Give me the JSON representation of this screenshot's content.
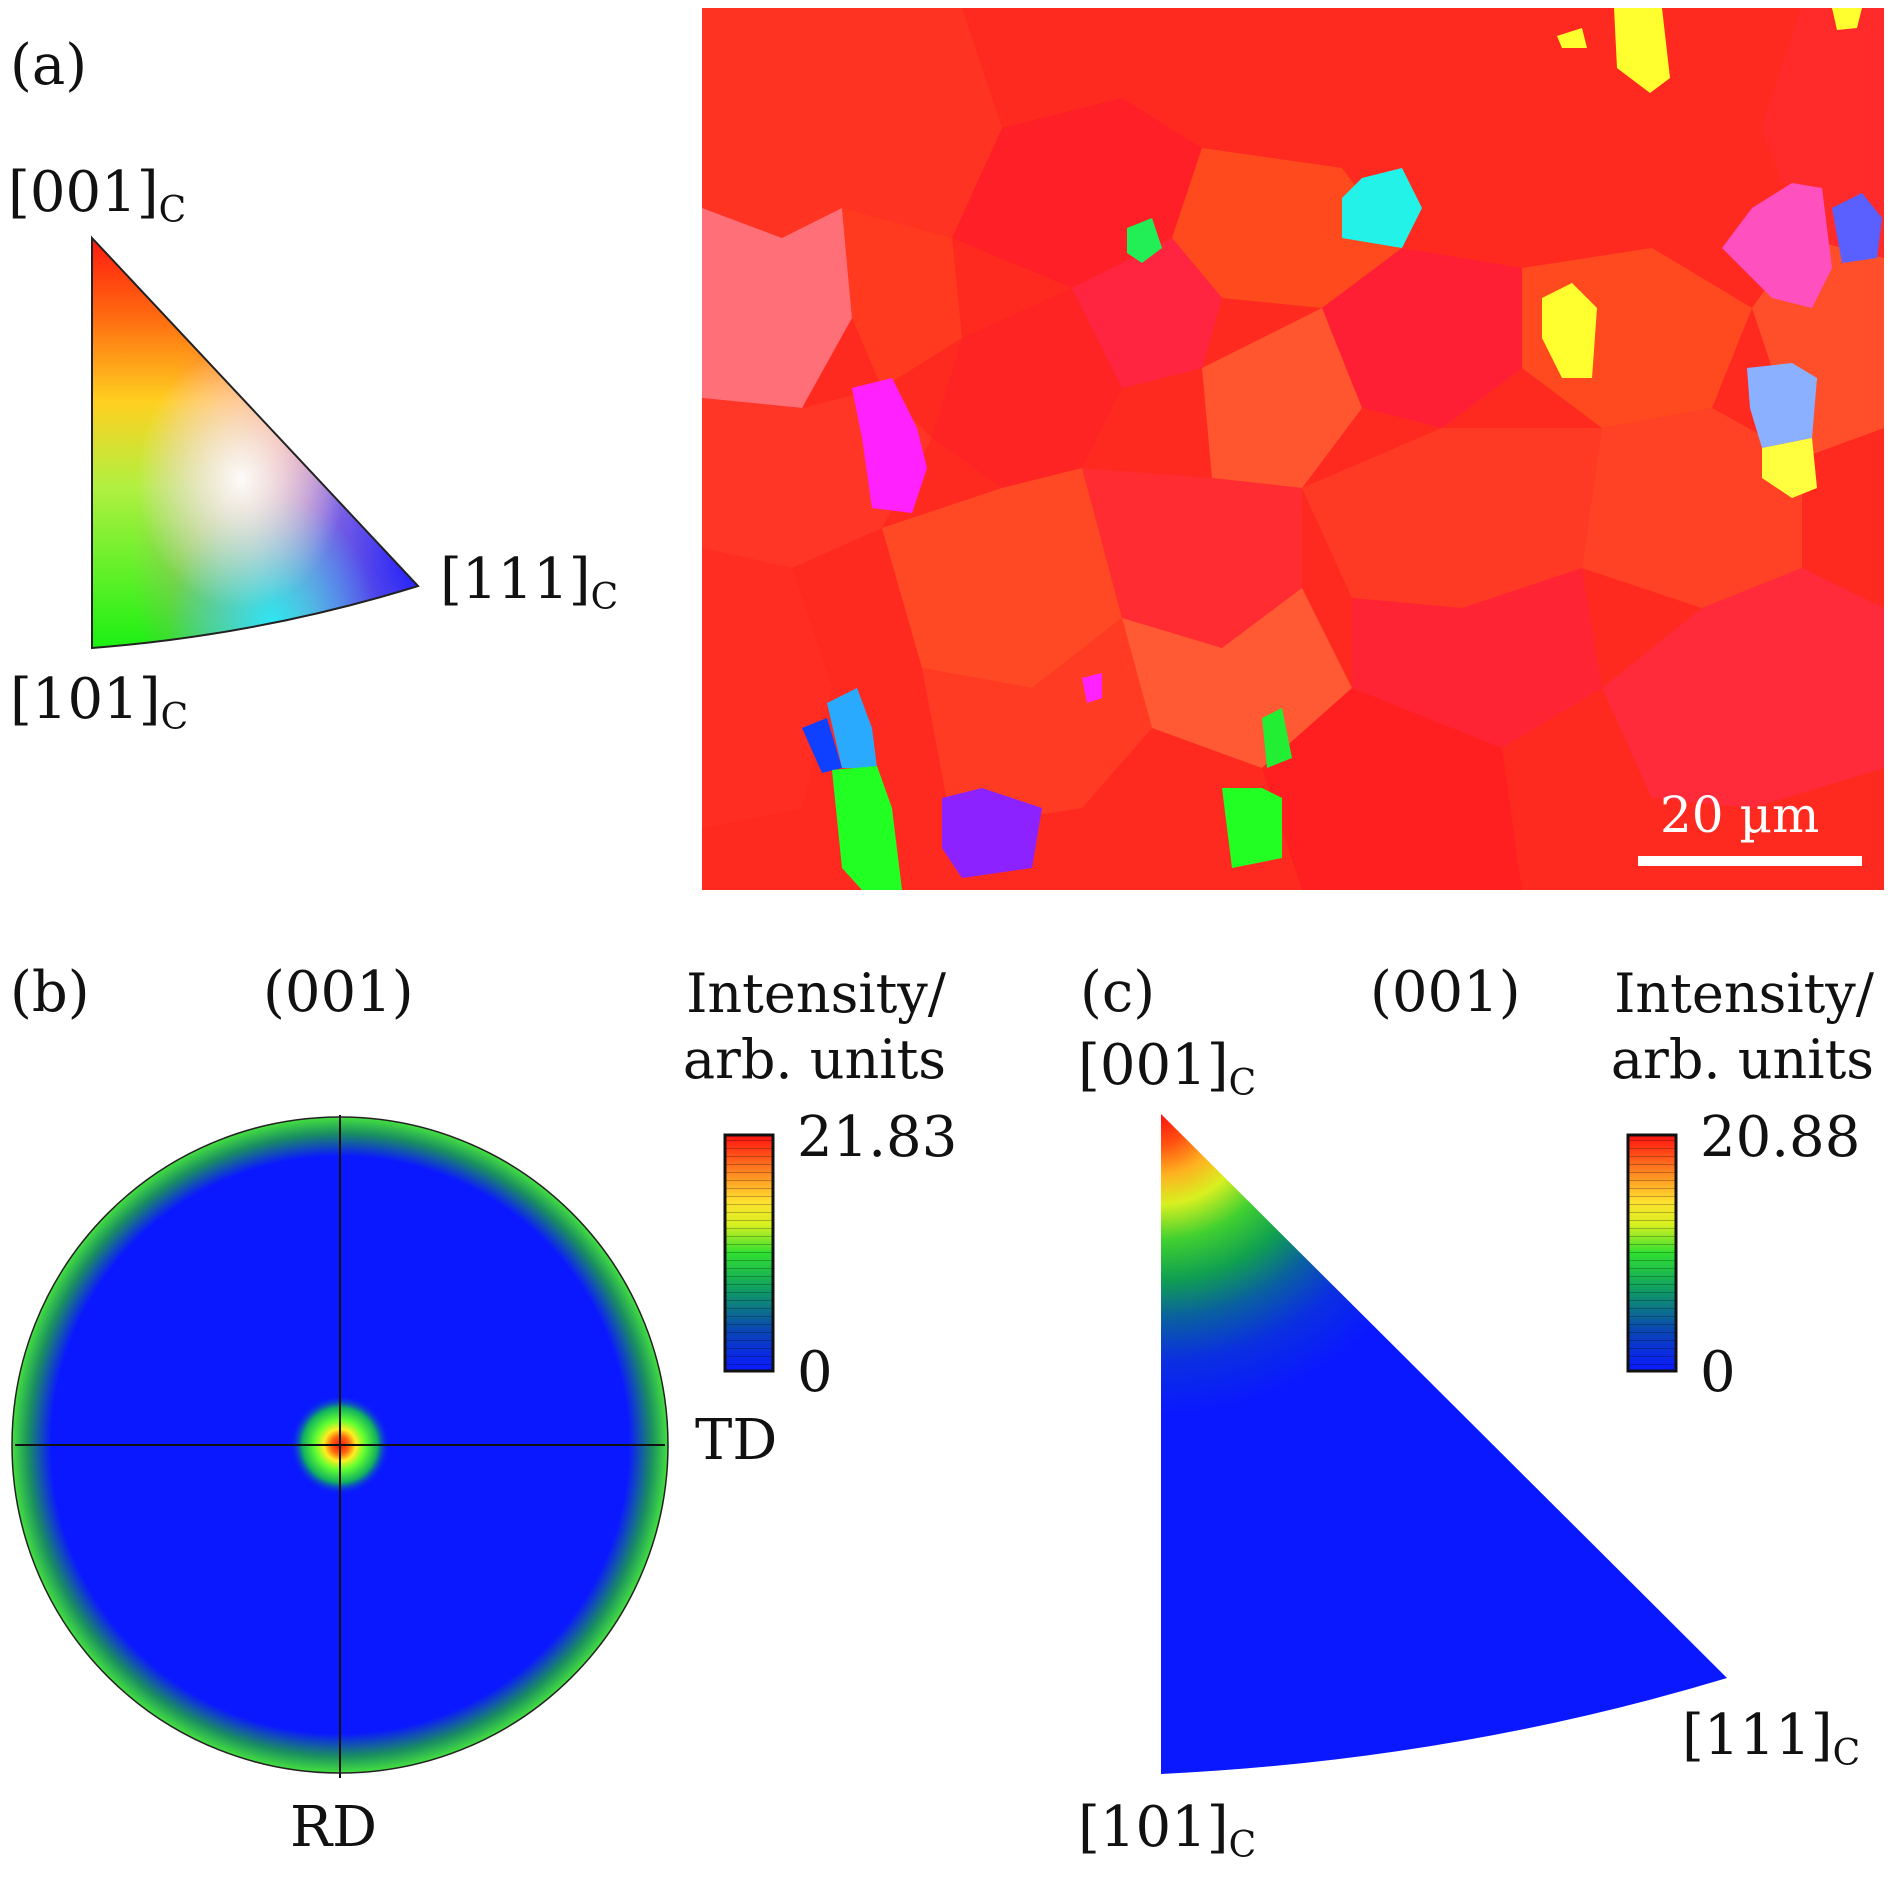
{
  "figure": {
    "panel_a": {
      "label": "(a)",
      "triangle": {
        "corner_001": {
          "main": "[001]",
          "sub": "C"
        },
        "corner_101": {
          "main": "[101]",
          "sub": "C"
        },
        "corner_111": {
          "main": "[111]",
          "sub": "C"
        }
      },
      "map": {
        "scale_bar_label": "20 µm"
      }
    },
    "panel_b": {
      "label": "(b)",
      "title": "(001)",
      "axis_td": "TD",
      "axis_rd": "RD",
      "colorbar": {
        "title_line1": "Intensity/",
        "title_line2": "arb. units",
        "max": "21.83",
        "min": "0"
      }
    },
    "panel_c": {
      "label": "(c)",
      "title": "(001)",
      "corner_001": {
        "main": "[001]",
        "sub": "C"
      },
      "corner_101": {
        "main": "[101]",
        "sub": "C"
      },
      "corner_111": {
        "main": "[111]",
        "sub": "C"
      },
      "colorbar": {
        "title_line1": "Intensity/",
        "title_line2": "arb. units",
        "max": "20.88",
        "min": "0"
      }
    }
  },
  "colors": {
    "red": "#ff2020",
    "green": "#22ee22",
    "blue": "#0a16ff",
    "cyan": "#22ffee",
    "magenta": "#ff22ff",
    "yellow": "#ffff30"
  }
}
